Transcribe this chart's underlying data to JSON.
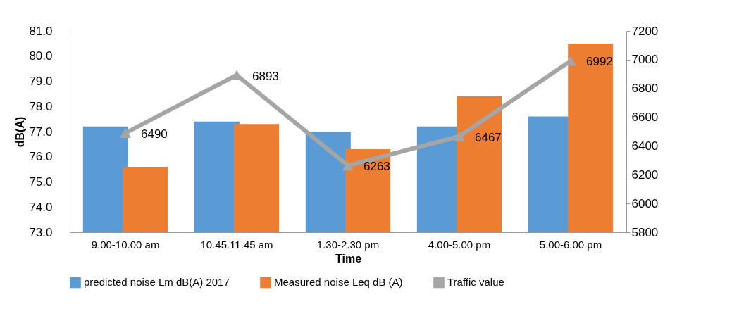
{
  "chart_data": {
    "type": "bar",
    "xlabel": "Time",
    "ylabel": "dB(A)",
    "categories": [
      "9.00-10.00 am",
      "10.45.11.45 am",
      "1.30-2.30 pm",
      "4.00-5.00 pm",
      "5.00-6.00 pm"
    ],
    "series": [
      {
        "name": "predicted noise Lm dB(A) 2017",
        "color": "#5b9bd5",
        "values": [
          77.2,
          77.4,
          77.0,
          77.2,
          77.6
        ]
      },
      {
        "name": "Measured noise Leq dB (A)",
        "color": "#ed7d31",
        "values": [
          75.6,
          77.3,
          76.3,
          78.4,
          80.5
        ]
      },
      {
        "name": "Traffic value",
        "type": "line",
        "axis": "y2",
        "color": "#a5a5a5",
        "marker": "triangle",
        "values": [
          6490,
          6893,
          6263,
          6467,
          6992
        ],
        "value_labels": [
          "6490",
          "6893",
          "6263",
          "6467",
          "6992"
        ]
      }
    ],
    "ylim": [
      73.0,
      81.0
    ],
    "yticks": [
      {
        "value": 73,
        "label": "73.0"
      },
      {
        "value": 74,
        "label": "74.0"
      },
      {
        "value": 75,
        "label": "75.0"
      },
      {
        "value": 76,
        "label": "76.0"
      },
      {
        "value": 77,
        "label": "77.0"
      },
      {
        "value": 78,
        "label": "78.0"
      },
      {
        "value": 79,
        "label": "79.0"
      },
      {
        "value": 80,
        "label": "80.0"
      },
      {
        "value": 81,
        "label": "81.0"
      }
    ],
    "y2lim": [
      5800,
      7200
    ],
    "y2ticks": [
      5800,
      6000,
      6200,
      6400,
      6600,
      6800,
      7000,
      7200
    ],
    "grid": false,
    "legend": "bottom"
  }
}
